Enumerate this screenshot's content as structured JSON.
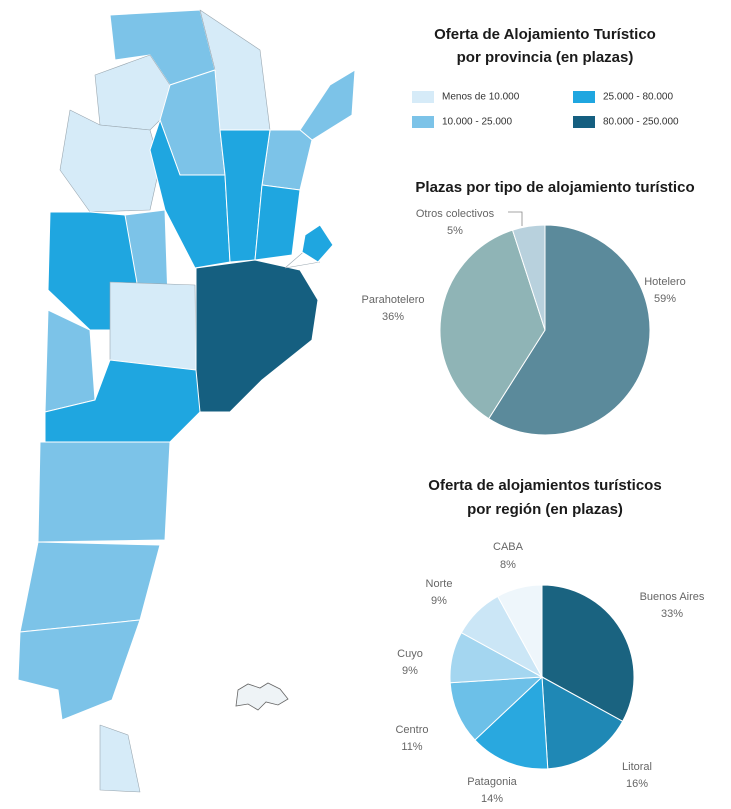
{
  "map": {
    "title_lines": [
      "Oferta de Alojamiento Turístico",
      "por provincia (en plazas)"
    ],
    "legend": [
      {
        "label": "Menos de 10.000",
        "color": "#d6ebf8"
      },
      {
        "label": "10.000 - 25.000",
        "color": "#7cc3e8"
      },
      {
        "label": "25.000 - 80.000",
        "color": "#1fa6e0"
      },
      {
        "label": "80.000 - 250.000",
        "color": "#155f80"
      }
    ]
  },
  "chart_data": [
    {
      "type": "pie",
      "title": "Plazas por tipo de alojamiento turístico",
      "categories": [
        "Hotelero",
        "Parahotelero",
        "Otros colectivos"
      ],
      "values": [
        59,
        36,
        5
      ],
      "value_labels": [
        "59%",
        "36%",
        "5%"
      ],
      "colors": [
        "#5b8a9b",
        "#8fb4b6",
        "#b8d1dd"
      ]
    },
    {
      "type": "pie",
      "title_lines": [
        "Oferta de alojamientos turísticos",
        "por región (en plazas)"
      ],
      "categories": [
        "Buenos Aires",
        "Litoral",
        "Patagonia",
        "Centro",
        "Cuyo",
        "Norte",
        "CABA"
      ],
      "values": [
        33,
        16,
        14,
        11,
        9,
        9,
        8
      ],
      "value_labels": [
        "33%",
        "16%",
        "14%",
        "11%",
        "9%",
        "9%",
        "8%"
      ],
      "colors": [
        "#1a6380",
        "#1f88b5",
        "#29a8df",
        "#6cc0e8",
        "#a4d6f0",
        "#cbe6f6",
        "#eef6fb"
      ]
    }
  ]
}
